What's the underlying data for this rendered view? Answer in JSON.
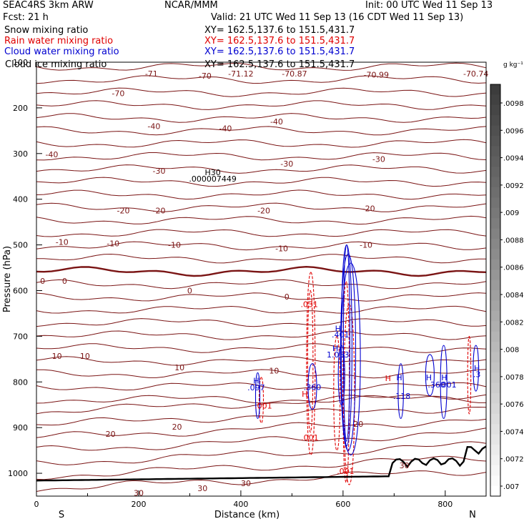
{
  "header": {
    "model": "SEAC4RS  3km ARW",
    "org": "NCAR/MMM",
    "init": "Init: 00 UTC Wed 11 Sep 13",
    "fcst": "Fcst:   21 h",
    "valid": "Valid: 21 UTC Wed 11 Sep 13 (16 CDT Wed 11 Sep 13)"
  },
  "fields": [
    {
      "name": "Snow mixing ratio",
      "xy": "XY= 162.5,137.6 to 151.5,431.7",
      "color": "#000000"
    },
    {
      "name": "Rain water mixing ratio",
      "xy": "XY= 162.5,137.6 to 151.5,431.7",
      "color": "#e00000"
    },
    {
      "name": "Cloud water mixing ratio",
      "xy": "XY= 162.5,137.6 to 151.5,431.7",
      "color": "#0000d0"
    },
    {
      "name": "Cloud ice mixing ratio",
      "xy": "XY= 162.5,137.6 to 151.5,431.7",
      "color": "#000000"
    }
  ],
  "colorbar": {
    "unit": "g kg⁻¹",
    "ticks": [
      ".0098",
      ".0096",
      ".0094",
      ".0092",
      ".009",
      ".0088",
      ".0086",
      ".0084",
      ".0082",
      ".008",
      ".0078",
      ".0076",
      ".0074",
      ".0072",
      ".007"
    ]
  },
  "chart_data": {
    "type": "line",
    "xlabel": "Distance (km)",
    "ylabel": "Pressure (hPa)",
    "xlim": [
      0,
      880
    ],
    "ylim": [
      1050,
      100
    ],
    "x_ticks": [
      0,
      200,
      400,
      600,
      800
    ],
    "y_ticks": [
      100,
      200,
      300,
      400,
      500,
      600,
      700,
      800,
      900,
      1000
    ],
    "x_end_labels": [
      "S",
      "N"
    ],
    "temperature_labels": [
      {
        "x": 225,
        "p": 125,
        "text": "-71"
      },
      {
        "x": 330,
        "p": 130,
        "text": "-70"
      },
      {
        "x": 400,
        "p": 125,
        "text": "-71.12"
      },
      {
        "x": 505,
        "p": 125,
        "text": "-70.87"
      },
      {
        "x": 665,
        "p": 127,
        "text": "-70.99"
      },
      {
        "x": 860,
        "p": 125,
        "text": "-70.74"
      },
      {
        "x": 160,
        "p": 168,
        "text": "-70"
      },
      {
        "x": 230,
        "p": 240,
        "text": "-40"
      },
      {
        "x": 370,
        "p": 245,
        "text": "-40"
      },
      {
        "x": 470,
        "p": 230,
        "text": "-40"
      },
      {
        "x": 30,
        "p": 302,
        "text": "-40"
      },
      {
        "x": 240,
        "p": 338,
        "text": "-30"
      },
      {
        "x": 490,
        "p": 322,
        "text": "-30"
      },
      {
        "x": 670,
        "p": 312,
        "text": "-30"
      },
      {
        "x": 170,
        "p": 425,
        "text": "-20"
      },
      {
        "x": 240,
        "p": 425,
        "text": "-20"
      },
      {
        "x": 445,
        "p": 425,
        "text": "-20"
      },
      {
        "x": 650,
        "p": 420,
        "text": "-20"
      },
      {
        "x": 50,
        "p": 494,
        "text": "-10"
      },
      {
        "x": 150,
        "p": 497,
        "text": "-10"
      },
      {
        "x": 270,
        "p": 500,
        "text": "-10"
      },
      {
        "x": 480,
        "p": 508,
        "text": "-10"
      },
      {
        "x": 645,
        "p": 500,
        "text": "-10"
      },
      {
        "x": 12,
        "p": 579,
        "text": "0"
      },
      {
        "x": 55,
        "p": 579,
        "text": "0"
      },
      {
        "x": 300,
        "p": 600,
        "text": "0"
      },
      {
        "x": 490,
        "p": 613,
        "text": "0"
      },
      {
        "x": 40,
        "p": 743,
        "text": "10"
      },
      {
        "x": 95,
        "p": 743,
        "text": "10"
      },
      {
        "x": 280,
        "p": 768,
        "text": "10"
      },
      {
        "x": 465,
        "p": 775,
        "text": "10"
      },
      {
        "x": 145,
        "p": 914,
        "text": "20"
      },
      {
        "x": 275,
        "p": 898,
        "text": "20"
      },
      {
        "x": 630,
        "p": 892,
        "text": "20"
      },
      {
        "x": 200,
        "p": 1043,
        "text": "30"
      },
      {
        "x": 325,
        "p": 1033,
        "text": "30"
      },
      {
        "x": 410,
        "p": 1022,
        "text": "30"
      },
      {
        "x": 720,
        "p": 983,
        "text": "30"
      }
    ],
    "value_labels": [
      {
        "x": 345,
        "p": 341,
        "text": "H30",
        "color": "#000000"
      },
      {
        "x": 345,
        "p": 355,
        "text": ".000007449",
        "color": "#000000"
      },
      {
        "x": 534,
        "p": 630,
        "text": ".031",
        "color": "#e00000"
      },
      {
        "x": 525,
        "p": 826,
        "text": "H",
        "color": "#e00000"
      },
      {
        "x": 444,
        "p": 852,
        "text": ".001",
        "color": "#e00000"
      },
      {
        "x": 535,
        "p": 922,
        "text": ".001",
        "color": "#e00000"
      },
      {
        "x": 605,
        "p": 995,
        "text": ".001",
        "color": "#e00000"
      },
      {
        "x": 688,
        "p": 792,
        "text": "H",
        "color": "#e00000"
      },
      {
        "x": 710,
        "p": 790,
        "text": "H",
        "color": "#0000d0"
      },
      {
        "x": 715,
        "p": 831,
        "text": ".118",
        "color": "#0000d0"
      },
      {
        "x": 430,
        "p": 797,
        "text": "H",
        "color": "#0000d0"
      },
      {
        "x": 430,
        "p": 812,
        "text": ".097",
        "color": "#0000d0"
      },
      {
        "x": 540,
        "p": 811,
        "text": ".360",
        "color": "#0000d0"
      },
      {
        "x": 590,
        "p": 683,
        "text": "H",
        "color": "#0000d0"
      },
      {
        "x": 595,
        "p": 696,
        "text": ".401",
        "color": "#0000d0"
      },
      {
        "x": 585,
        "p": 726,
        "text": "H",
        "color": "#0000d0"
      },
      {
        "x": 590,
        "p": 740,
        "text": "1.053",
        "color": "#0000d0"
      },
      {
        "x": 768,
        "p": 790,
        "text": "H",
        "color": "#0000d0"
      },
      {
        "x": 798,
        "p": 790,
        "text": "H",
        "color": "#0000d0"
      },
      {
        "x": 783,
        "p": 806,
        "text": ".360",
        "color": "#0000d0"
      },
      {
        "x": 805,
        "p": 806,
        "text": ".001",
        "color": "#0000d0"
      },
      {
        "x": 862,
        "p": 770,
        "text": "H",
        "color": "#0000d0"
      },
      {
        "x": 862,
        "p": 783,
        "text": ".3",
        "color": "#0000d0"
      }
    ]
  }
}
